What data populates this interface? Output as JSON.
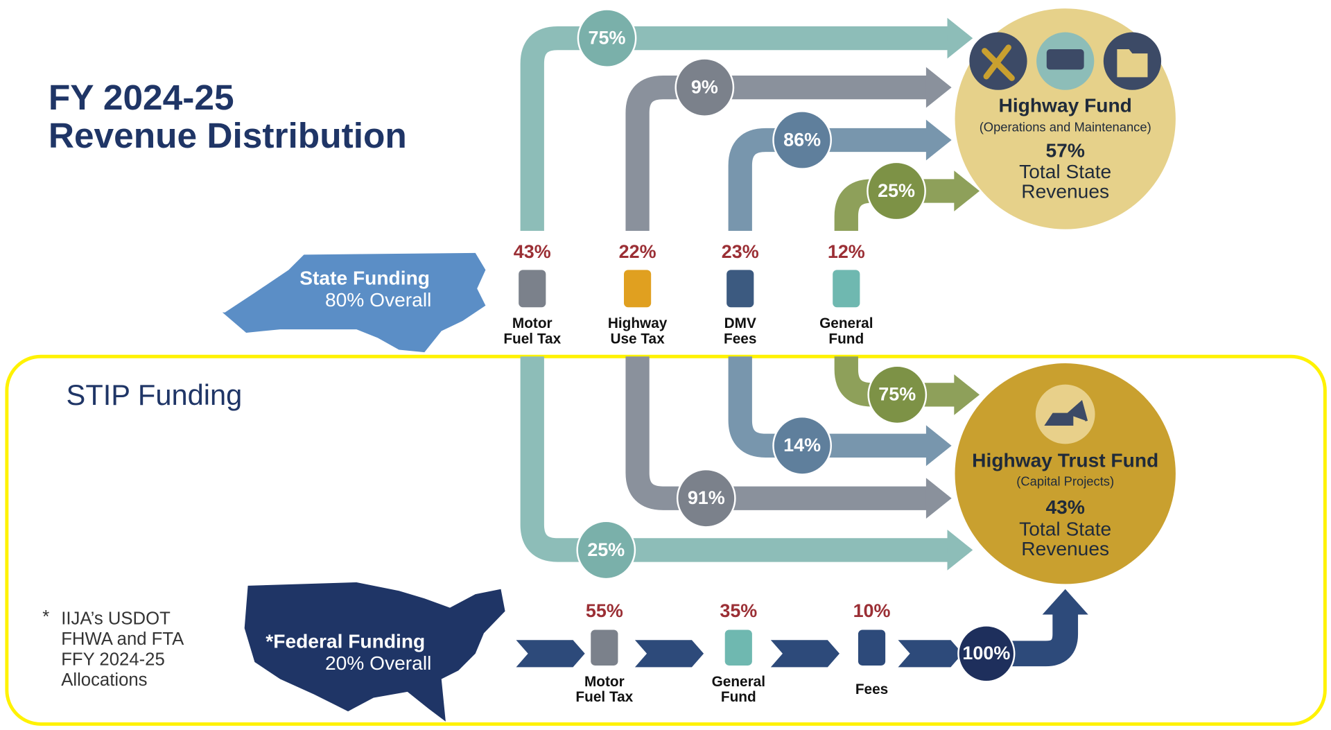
{
  "title": [
    "FY 2024-25",
    "Revenue Distribution"
  ],
  "stip_label": "STIP Funding",
  "state_funding": {
    "label": "State Funding",
    "share": "80% Overall"
  },
  "federal_funding": {
    "label": "*Federal Funding",
    "share": "20% Overall"
  },
  "footnote": {
    "marker": "*",
    "lines": [
      "IIJA’s USDOT",
      "FHWA and FTA",
      "FFY 2024-25",
      "Allocations"
    ]
  },
  "state_sources": [
    {
      "name_lines": [
        "Motor",
        "Fuel Tax"
      ],
      "share": "43%",
      "to_highway_fund": "75%",
      "to_trust_fund": "25%"
    },
    {
      "name_lines": [
        "Highway",
        "Use Tax"
      ],
      "share": "22%",
      "to_highway_fund": "9%",
      "to_trust_fund": "91%"
    },
    {
      "name_lines": [
        "DMV",
        "Fees"
      ],
      "share": "23%",
      "to_highway_fund": "86%",
      "to_trust_fund": "14%"
    },
    {
      "name_lines": [
        "General",
        "Fund"
      ],
      "share": "12%",
      "to_highway_fund": "25%",
      "to_trust_fund": "75%"
    }
  ],
  "highway_fund": {
    "name": "Highway Fund",
    "subtitle": "(Operations and Maintenance)",
    "share": "57%",
    "description_lines": [
      "Total State",
      "Revenues"
    ]
  },
  "highway_trust_fund": {
    "name": "Highway Trust Fund",
    "subtitle": "(Capital Projects)",
    "share": "43%",
    "description_lines": [
      "Total State",
      "Revenues"
    ]
  },
  "federal_sources": [
    {
      "name_lines": [
        "Motor",
        "Fuel Tax"
      ],
      "share": "55%"
    },
    {
      "name_lines": [
        "General",
        "Fund"
      ],
      "share": "35%"
    },
    {
      "name_lines": [
        "Fees"
      ],
      "share": "10%"
    }
  ],
  "federal_to_trust_fund": "100%"
}
